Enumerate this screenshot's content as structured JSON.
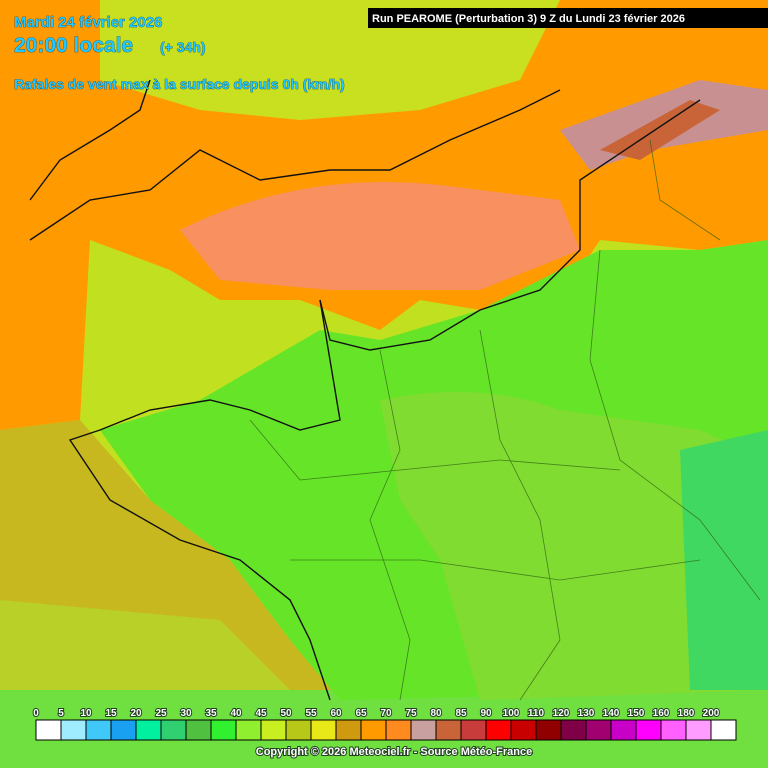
{
  "header": {
    "date": "Mardi 24 février 2026",
    "time": "20:00 locale",
    "lead": "(+ 34h)",
    "parameter": "Rafales de vent max à la surface depuis 0h (km/h)",
    "run": "Run PEAROME (Perturbation 3) 9 Z du Lundi 23 février 2026"
  },
  "legend": {
    "items": [
      {
        "value": 0,
        "color": "#ffffff"
      },
      {
        "value": 5,
        "color": "#a0ecff"
      },
      {
        "value": 10,
        "color": "#40c8f8"
      },
      {
        "value": 15,
        "color": "#1aa0f0"
      },
      {
        "value": 20,
        "color": "#00f0a0"
      },
      {
        "value": 25,
        "color": "#30d070"
      },
      {
        "value": 30,
        "color": "#50c040"
      },
      {
        "value": 35,
        "color": "#30f030"
      },
      {
        "value": 40,
        "color": "#90f030"
      },
      {
        "value": 45,
        "color": "#c8f020"
      },
      {
        "value": 50,
        "color": "#b8c818"
      },
      {
        "value": 55,
        "color": "#e8e818"
      },
      {
        "value": 60,
        "color": "#d09a10"
      },
      {
        "value": 65,
        "color": "#ff9a00"
      },
      {
        "value": 70,
        "color": "#ff8a20"
      },
      {
        "value": 75,
        "color": "#c8a0a0"
      },
      {
        "value": 80,
        "color": "#c86438"
      },
      {
        "value": 85,
        "color": "#c83c3c"
      },
      {
        "value": 90,
        "color": "#ff0000"
      },
      {
        "value": 100,
        "color": "#c80000"
      },
      {
        "value": 110,
        "color": "#900000"
      },
      {
        "value": 120,
        "color": "#800048"
      },
      {
        "value": 130,
        "color": "#a00070"
      },
      {
        "value": 140,
        "color": "#c800c8"
      },
      {
        "value": 150,
        "color": "#ff00ff"
      },
      {
        "value": 160,
        "color": "#ff60ff"
      },
      {
        "value": 180,
        "color": "#ff9cff"
      },
      {
        "value": 200,
        "color": "#ffffff"
      }
    ]
  },
  "copyright": "Copyright © 2026 Meteociel.fr - Source Météo-France"
}
